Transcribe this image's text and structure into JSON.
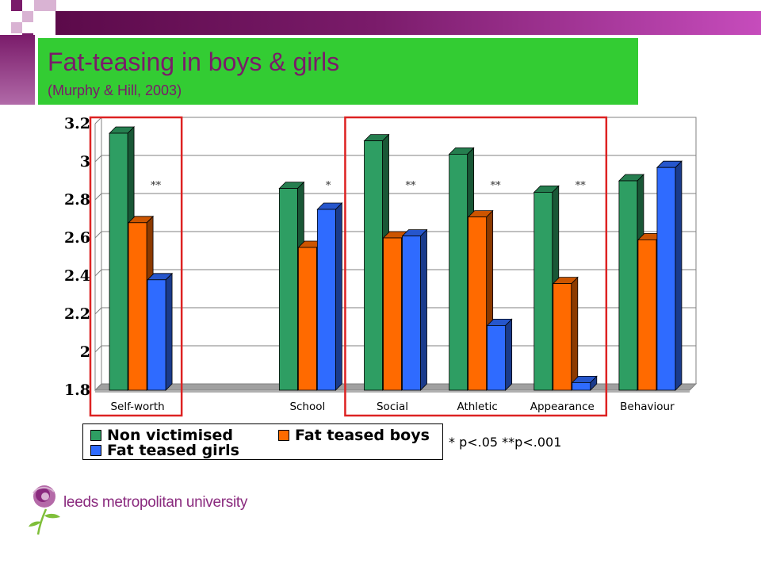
{
  "slide": {
    "title": "Fat-teasing in boys & girls",
    "subtitle": "(Murphy & Hill, 2003)",
    "significance_note": "* p<.05  **p<.001",
    "logo_text": "leeds metropolitan university",
    "colors": {
      "accent_purple": "#7a1b6a",
      "title_green": "#33cc33",
      "highlight_red": "#dd2222"
    }
  },
  "chart_data": {
    "type": "bar",
    "title": "",
    "xlabel": "",
    "ylabel": "",
    "ylim": [
      1.8,
      3.2
    ],
    "yticks": [
      "1.8",
      "2",
      "2.2",
      "2.4",
      "2.6",
      "2.8",
      "3",
      "3.2"
    ],
    "categories": [
      "Self-worth",
      "",
      "School",
      "Social",
      "Athletic",
      "Appearance",
      "Behaviour"
    ],
    "series": [
      {
        "name": "Non victimised",
        "color": "#2e9e63",
        "values": [
          3.15,
          null,
          2.86,
          3.11,
          3.04,
          2.84,
          2.9
        ]
      },
      {
        "name": "Fat teased boys",
        "color": "#ff6a00",
        "values": [
          2.68,
          null,
          2.55,
          2.6,
          2.71,
          2.36,
          2.59
        ]
      },
      {
        "name": "Fat teased girls",
        "color": "#2f6bff",
        "values": [
          2.38,
          null,
          2.75,
          2.61,
          2.14,
          1.84,
          2.97
        ]
      }
    ],
    "significance": [
      "**",
      "",
      "*",
      "**",
      "**",
      "**",
      ""
    ],
    "grid": true,
    "legend_position": "bottom",
    "highlight_groups": [
      [
        "Self-worth"
      ],
      [
        "Social",
        "Athletic",
        "Appearance"
      ]
    ]
  }
}
